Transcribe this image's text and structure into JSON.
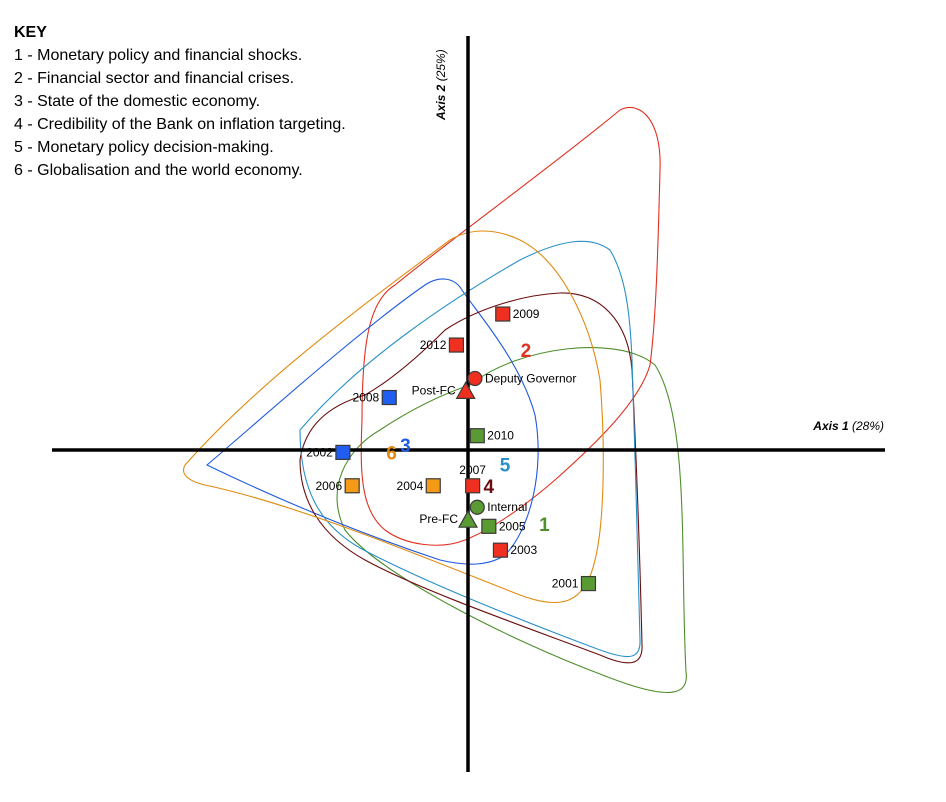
{
  "chart_data": {
    "type": "scatter",
    "title": "",
    "key": {
      "heading": "KEY",
      "items": [
        "1 - Monetary policy and financial shocks.",
        "2 - Financial sector and financial crises.",
        "3 - State of the domestic economy.",
        "4 - Credibility of the Bank on inflation targeting.",
        "5 - Monetary policy decision-making.",
        "6 - Globalisation and the world economy."
      ]
    },
    "axes": {
      "x": {
        "name": "Axis 1",
        "pct": "(28%)"
      },
      "y": {
        "name": "Axis 2",
        "pct": "(25%)"
      },
      "xlim": [
        -1.8,
        1.8
      ],
      "ylim": [
        -1.35,
        1.7
      ],
      "grid": false
    },
    "colors": {
      "cluster_1": "#4e8e2c",
      "cluster_2": "#e03020",
      "cluster_3": "#1f5ae0",
      "cluster_4": "#6a0e0e",
      "cluster_5": "#2a90c8",
      "cluster_6": "#e08a10",
      "marker_green": "#5a9a32",
      "marker_red": "#ef2f1f",
      "marker_blue": "#1f5ef0",
      "marker_orange": "#f59a16"
    },
    "points": [
      {
        "label": "2009",
        "x": 0.15,
        "y": 0.57,
        "shape": "square",
        "color": "red"
      },
      {
        "label": "2012",
        "x": -0.05,
        "y": 0.44,
        "shape": "square",
        "color": "red"
      },
      {
        "label": "Deputy Governor",
        "x": 0.03,
        "y": 0.3,
        "shape": "circle",
        "color": "red"
      },
      {
        "label": "Post-FC",
        "x": -0.01,
        "y": 0.25,
        "shape": "triangle",
        "color": "red"
      },
      {
        "label": "2008",
        "x": -0.34,
        "y": 0.22,
        "shape": "square",
        "color": "blue"
      },
      {
        "label": "2010",
        "x": 0.04,
        "y": 0.06,
        "shape": "square",
        "color": "green"
      },
      {
        "label": "2002",
        "x": -0.54,
        "y": -0.01,
        "shape": "square",
        "color": "blue"
      },
      {
        "label": "2007",
        "x": 0.02,
        "y": -0.15,
        "shape": "square",
        "color": "red"
      },
      {
        "label": "2006",
        "x": -0.5,
        "y": -0.15,
        "shape": "square",
        "color": "orange"
      },
      {
        "label": "2004",
        "x": -0.15,
        "y": -0.15,
        "shape": "square",
        "color": "orange"
      },
      {
        "label": "Internal",
        "x": 0.04,
        "y": -0.24,
        "shape": "circle",
        "color": "green"
      },
      {
        "label": "Pre-FC",
        "x": 0.0,
        "y": -0.29,
        "shape": "triangle",
        "color": "green"
      },
      {
        "label": "2005",
        "x": 0.09,
        "y": -0.32,
        "shape": "square",
        "color": "green"
      },
      {
        "label": "2003",
        "x": 0.14,
        "y": -0.42,
        "shape": "square",
        "color": "red"
      },
      {
        "label": "2001",
        "x": 0.52,
        "y": -0.56,
        "shape": "square",
        "color": "green"
      }
    ],
    "cluster_labels": [
      {
        "label": "1",
        "x": 0.33,
        "y": -0.31,
        "color": "cluster_1"
      },
      {
        "label": "2",
        "x": 0.25,
        "y": 0.42,
        "color": "cluster_2"
      },
      {
        "label": "3",
        "x": -0.27,
        "y": 0.02,
        "color": "cluster_3"
      },
      {
        "label": "4",
        "x": 0.09,
        "y": -0.15,
        "color": "cluster_4"
      },
      {
        "label": "5",
        "x": 0.16,
        "y": -0.06,
        "color": "cluster_5"
      },
      {
        "label": "6",
        "x": -0.33,
        "y": -0.01,
        "color": "cluster_6"
      }
    ],
    "clusters": [
      {
        "name": "1",
        "color": "cluster_1"
      },
      {
        "name": "2",
        "color": "cluster_2"
      },
      {
        "name": "3",
        "color": "cluster_3"
      },
      {
        "name": "4",
        "color": "cluster_4"
      },
      {
        "name": "5",
        "color": "cluster_5"
      },
      {
        "name": "6",
        "color": "cluster_6"
      }
    ]
  }
}
